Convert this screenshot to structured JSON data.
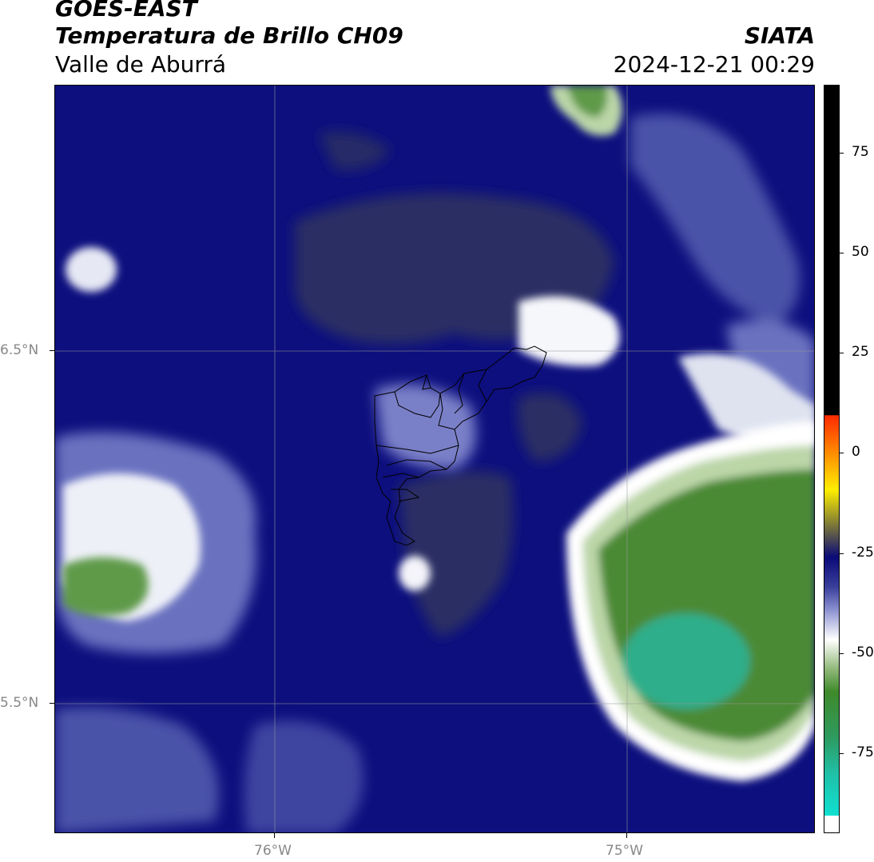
{
  "header": {
    "title": "GOES-EAST",
    "subtitle": "Temperatura de Brillo CH09",
    "region": "Valle de Aburrá",
    "organization": "SIATA",
    "timestamp": "2024-12-21 00:29"
  },
  "axes": {
    "lat_labels": [
      "6.5°N",
      "5.5°N"
    ],
    "lon_labels": [
      "76°W",
      "75°W"
    ]
  },
  "colorbar": {
    "tick_labels": [
      "75",
      "50",
      "25",
      "0",
      "-25",
      "-50",
      "-75"
    ],
    "range": [
      -95,
      92
    ],
    "colors": {
      "warm": "#000000",
      "red": "#ff2a00",
      "orange": "#ff8a00",
      "yellow": "#ffee00",
      "olive": "#8f8a2e",
      "navy": "#0a0a78",
      "blue_light": "#8a8fd0",
      "white": "#ffffff",
      "green": "#3f8a2a",
      "cyan": "#10e0d0"
    }
  },
  "map_colors": {
    "navy": "#0d0f7e",
    "dark_navy": "#1b1f66",
    "gray_dark": "#2c2f63",
    "blue_mid": "#4a52a8",
    "lavender": "#a9add8",
    "white": "#ffffff",
    "green_light": "#bcd6a8",
    "green": "#4b8a36",
    "green_dark": "#3b7a2b",
    "teal": "#2fae8a"
  }
}
